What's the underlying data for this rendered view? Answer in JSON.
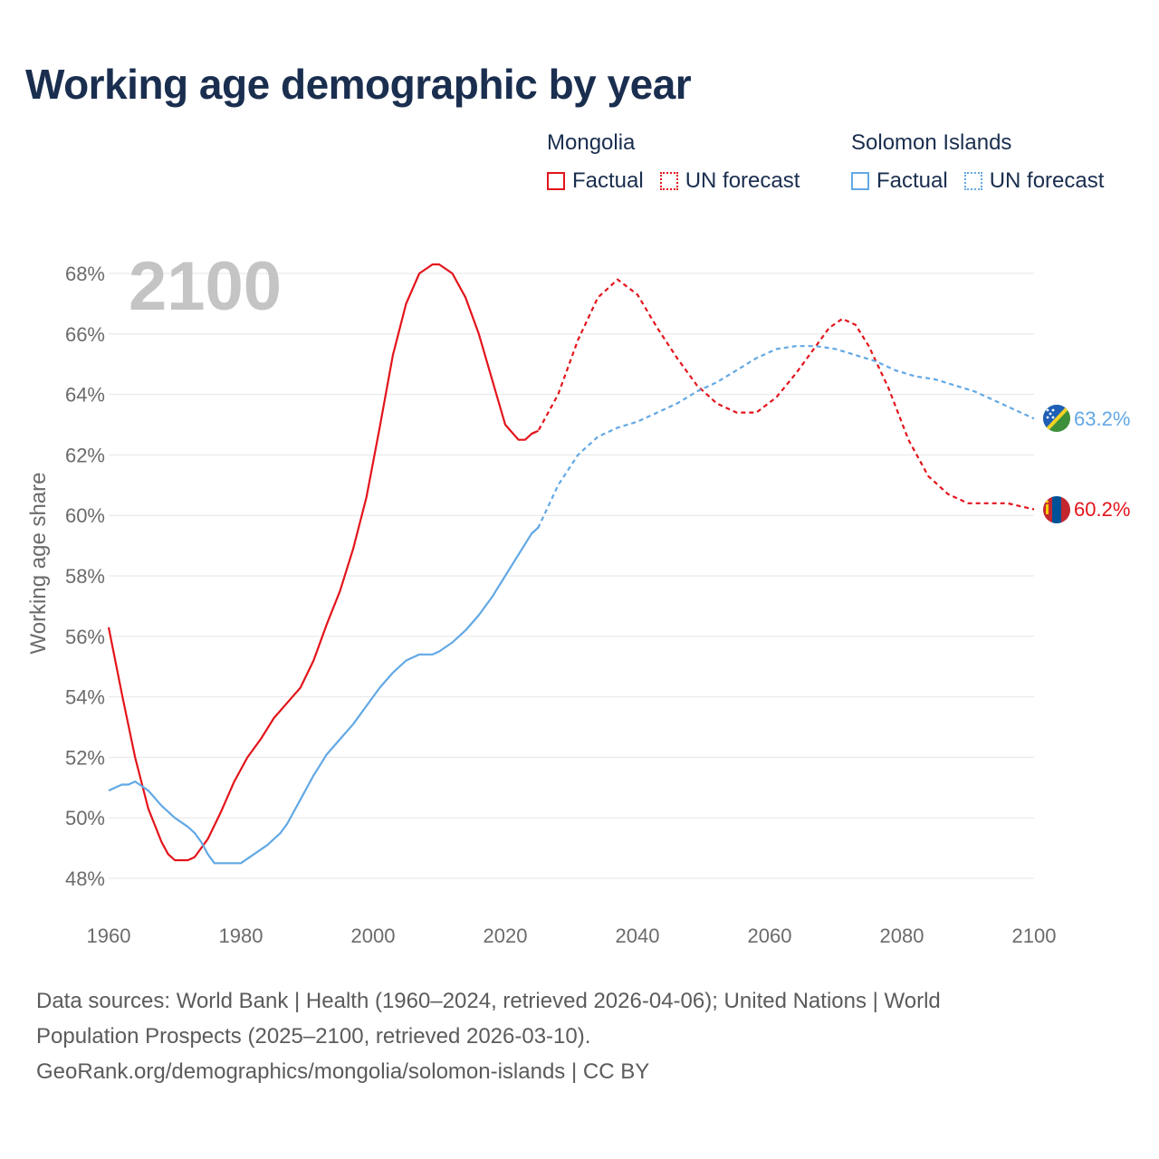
{
  "title": "Working age demographic by year",
  "legend": {
    "groups": [
      {
        "country": "Mongolia",
        "color": "#e3141b",
        "factual_label": "Factual",
        "forecast_label": "UN forecast"
      },
      {
        "country": "Solomon Islands",
        "color": "#62a8e5",
        "factual_label": "Factual",
        "forecast_label": "UN forecast"
      }
    ]
  },
  "year_watermark": "2100",
  "chart_data": {
    "type": "line",
    "title": "Working age demographic by year",
    "xlabel": "",
    "ylabel": "Working age share",
    "xlim": [
      1960,
      2100
    ],
    "ylim": [
      47.5,
      69
    ],
    "x_ticks": [
      1960,
      1980,
      2000,
      2020,
      2040,
      2060,
      2080,
      2100
    ],
    "x_tick_labels": [
      "1960",
      "1980",
      "2000",
      "2020",
      "2040",
      "2060",
      "2080",
      "2100"
    ],
    "y_ticks": [
      48,
      50,
      52,
      54,
      56,
      58,
      60,
      62,
      64,
      66,
      68
    ],
    "y_tick_labels": [
      "48%",
      "50%",
      "52%",
      "54%",
      "56%",
      "58%",
      "60%",
      "62%",
      "64%",
      "66%",
      "68%"
    ],
    "grid": true,
    "factual_end_year": 2024,
    "series": [
      {
        "name": "Mongolia",
        "color": "#e3141b",
        "end_label": "60.2%",
        "x": [
          1960,
          1962,
          1964,
          1966,
          1968,
          1969,
          1970,
          1972,
          1973,
          1975,
          1977,
          1979,
          1981,
          1983,
          1985,
          1987,
          1989,
          1991,
          1993,
          1995,
          1997,
          1999,
          2001,
          2003,
          2005,
          2007,
          2009,
          2010,
          2012,
          2014,
          2016,
          2018,
          2020,
          2022,
          2023,
          2024,
          2025,
          2028,
          2031,
          2034,
          2037,
          2040,
          2043,
          2046,
          2049,
          2052,
          2055,
          2058,
          2061,
          2064,
          2067,
          2069,
          2071,
          2073,
          2075,
          2078,
          2081,
          2084,
          2087,
          2090,
          2093,
          2096,
          2098,
          2100
        ],
        "values": [
          56.3,
          54.1,
          52.0,
          50.3,
          49.2,
          48.8,
          48.6,
          48.6,
          48.7,
          49.3,
          50.2,
          51.2,
          52.0,
          52.6,
          53.3,
          53.8,
          54.3,
          55.2,
          56.4,
          57.5,
          58.9,
          60.6,
          62.9,
          65.3,
          67.0,
          68.0,
          68.3,
          68.3,
          68.0,
          67.2,
          66.0,
          64.5,
          63.0,
          62.5,
          62.5,
          62.7,
          62.8,
          64.0,
          65.8,
          67.2,
          67.8,
          67.3,
          66.2,
          65.2,
          64.3,
          63.7,
          63.4,
          63.4,
          63.9,
          64.7,
          65.6,
          66.2,
          66.5,
          66.3,
          65.6,
          64.2,
          62.5,
          61.3,
          60.7,
          60.4,
          60.4,
          60.4,
          60.3,
          60.2
        ]
      },
      {
        "name": "Solomon Islands",
        "color": "#62a8e5",
        "end_label": "63.2%",
        "x": [
          1960,
          1962,
          1963,
          1964,
          1966,
          1968,
          1970,
          1972,
          1973,
          1974,
          1975,
          1976,
          1978,
          1980,
          1982,
          1984,
          1986,
          1987,
          1989,
          1991,
          1993,
          1995,
          1997,
          1999,
          2001,
          2003,
          2005,
          2007,
          2009,
          2010,
          2012,
          2014,
          2016,
          2018,
          2020,
          2022,
          2024,
          2025,
          2028,
          2031,
          2034,
          2037,
          2040,
          2043,
          2046,
          2049,
          2052,
          2055,
          2058,
          2061,
          2064,
          2067,
          2070,
          2073,
          2076,
          2079,
          2082,
          2085,
          2088,
          2091,
          2094,
          2097,
          2099,
          2100
        ],
        "values": [
          50.9,
          51.1,
          51.1,
          51.2,
          50.9,
          50.4,
          50.0,
          49.7,
          49.5,
          49.2,
          48.8,
          48.5,
          48.5,
          48.5,
          48.8,
          49.1,
          49.5,
          49.8,
          50.6,
          51.4,
          52.1,
          52.6,
          53.1,
          53.7,
          54.3,
          54.8,
          55.2,
          55.4,
          55.4,
          55.5,
          55.8,
          56.2,
          56.7,
          57.3,
          58.0,
          58.7,
          59.4,
          59.6,
          61.0,
          62.0,
          62.6,
          62.9,
          63.1,
          63.4,
          63.7,
          64.1,
          64.4,
          64.8,
          65.2,
          65.5,
          65.6,
          65.6,
          65.5,
          65.3,
          65.1,
          64.8,
          64.6,
          64.5,
          64.3,
          64.1,
          63.8,
          63.5,
          63.3,
          63.2
        ]
      }
    ]
  },
  "footer": {
    "line1": "Data sources: World Bank | Health (1960–2024, retrieved 2026-04-06); United Nations | World",
    "line2": "Population Prospects (2025–2100, retrieved 2026-03-10).",
    "line3": "GeoRank.org/demographics/mongolia/solomon-islands | CC BY"
  },
  "flags": {
    "mongolia_icon": "mongolia-flag-icon",
    "solomon_icon": "solomon-islands-flag-icon"
  }
}
